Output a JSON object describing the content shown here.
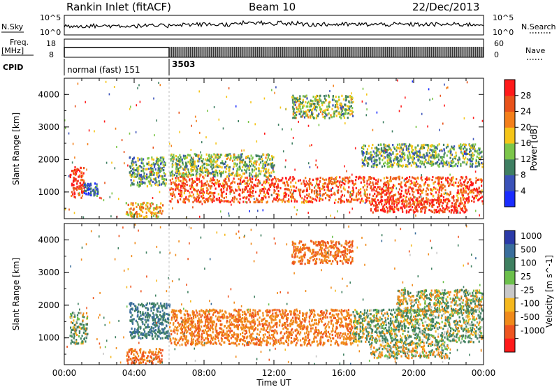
{
  "header": {
    "station": "Rankin Inlet (fitACF)",
    "beam": "Beam 10",
    "date": "22/Dec/2013"
  },
  "left_labels": {
    "nsky": "N.Sky",
    "freq": "Freq.",
    "freq_unit": "[MHz]",
    "cpid": "CPID"
  },
  "right_labels": {
    "nsearch": "N.Search",
    "nave": "Nave"
  },
  "nsky_axis": {
    "top": "10^5",
    "bottom": "10^0"
  },
  "nsearch_axis": {
    "top": "10^5",
    "bottom": "10^0"
  },
  "freq_axis": {
    "top": "18",
    "bottom": "8"
  },
  "nave_axis": {
    "top": "60",
    "bottom": "0"
  },
  "cpid": [
    {
      "label": "normal (fast) 151",
      "start": "00:00",
      "end": "06:00"
    },
    {
      "label": "3503",
      "start": "06:00",
      "end": "24:00"
    }
  ],
  "x_axis": {
    "label": "Time UT",
    "ticks": [
      "00:00",
      "04:00",
      "08:00",
      "12:00",
      "16:00",
      "20:00",
      "00:00"
    ]
  },
  "y_axis": {
    "label": "Slant Range [km]",
    "ticks": [
      "1000",
      "2000",
      "3000",
      "4000"
    ]
  },
  "power_colorbar": {
    "label": "Power [dB]",
    "ticks": [
      "4",
      "8",
      "12",
      "16",
      "20",
      "24",
      "28"
    ],
    "colors": [
      "#1a2cff",
      "#3a52b8",
      "#3f7f62",
      "#7cc64a",
      "#f5c518",
      "#f47f1a",
      "#e8521a",
      "#ff1a1a"
    ]
  },
  "velocity_colorbar": {
    "label": "Velocity [m s^-1]",
    "ticks": [
      "1000",
      "500",
      "100",
      "25",
      "-25",
      "-100",
      "-500",
      "-1000"
    ],
    "colors": [
      "#2b3aa8",
      "#3a6e9c",
      "#3f8060",
      "#6cc04c",
      "#c8c8c8",
      "#f5b81e",
      "#f08a1a",
      "#ee5520",
      "#ff1a1a"
    ]
  },
  "chart_data": [
    {
      "type": "heatmap",
      "title": "Power",
      "xlabel": "Time UT",
      "ylabel": "Slant Range [km]",
      "xlim": [
        0,
        24
      ],
      "ylim": [
        180,
        4500
      ],
      "value_label": "Power [dB]",
      "clim": [
        0,
        32
      ],
      "blobs": [
        {
          "t0": 0.3,
          "t1": 1.1,
          "r0": 850,
          "r1": 1800,
          "v": 28
        },
        {
          "t0": 1.1,
          "t1": 1.9,
          "r0": 900,
          "r1": 1300,
          "v": 6
        },
        {
          "t0": 3.7,
          "t1": 5.8,
          "r0": 1200,
          "r1": 2100,
          "v": 12
        },
        {
          "t0": 3.5,
          "t1": 5.6,
          "r0": 250,
          "r1": 700,
          "v": 20
        },
        {
          "t0": 6.0,
          "t1": 23.9,
          "r0": 700,
          "r1": 1500,
          "v": 26
        },
        {
          "t0": 6.0,
          "t1": 12.0,
          "r0": 1500,
          "r1": 2200,
          "v": 14
        },
        {
          "t0": 17.5,
          "t1": 23.0,
          "r0": 400,
          "r1": 800,
          "v": 28
        },
        {
          "t0": 13.0,
          "t1": 16.5,
          "r0": 3300,
          "r1": 4000,
          "v": 14
        },
        {
          "t0": 17.0,
          "t1": 23.9,
          "r0": 1800,
          "r1": 2500,
          "v": 12
        }
      ]
    },
    {
      "type": "heatmap",
      "title": "Velocity",
      "xlabel": "Time UT",
      "ylabel": "Slant Range [km]",
      "xlim": [
        0,
        24
      ],
      "ylim": [
        180,
        4500
      ],
      "value_label": "Velocity [m s^-1]",
      "clim": [
        -1000,
        1000
      ],
      "blobs": [
        {
          "t0": 0.3,
          "t1": 1.3,
          "r0": 850,
          "r1": 1800,
          "v": 120
        },
        {
          "t0": 3.7,
          "t1": 6.0,
          "r0": 1000,
          "r1": 2100,
          "v": 500
        },
        {
          "t0": 3.5,
          "t1": 5.6,
          "r0": 250,
          "r1": 700,
          "v": -500
        },
        {
          "t0": 6.0,
          "t1": 16.5,
          "r0": 800,
          "r1": 1900,
          "v": -400
        },
        {
          "t0": 16.5,
          "t1": 23.9,
          "r0": 900,
          "r1": 1900,
          "v": 100
        },
        {
          "t0": 17.5,
          "t1": 22.0,
          "r0": 400,
          "r1": 900,
          "v": 0
        },
        {
          "t0": 13.0,
          "t1": 16.5,
          "r0": 3300,
          "r1": 4000,
          "v": -500
        },
        {
          "t0": 19.0,
          "t1": 23.9,
          "r0": 1800,
          "r1": 2500,
          "v": 10
        }
      ]
    }
  ]
}
